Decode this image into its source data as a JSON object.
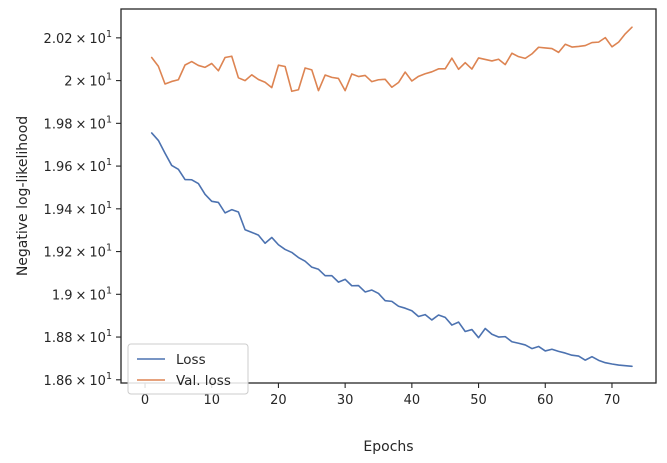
{
  "chart_data": {
    "type": "line",
    "title": "",
    "xlabel": "Epochs",
    "ylabel": "Negative log-likelihood",
    "x_ticks": [
      0,
      10,
      20,
      30,
      40,
      50,
      60,
      70
    ],
    "y_ticks": [
      {
        "value": 18.6,
        "mantissa": "1.86",
        "exp": "1"
      },
      {
        "value": 18.8,
        "mantissa": "1.88",
        "exp": "1"
      },
      {
        "value": 19.0,
        "mantissa": "1.9",
        "exp": "1"
      },
      {
        "value": 19.2,
        "mantissa": "1.92",
        "exp": "1"
      },
      {
        "value": 19.4,
        "mantissa": "1.94",
        "exp": "1"
      },
      {
        "value": 19.6,
        "mantissa": "1.96",
        "exp": "1"
      },
      {
        "value": 19.8,
        "mantissa": "1.98",
        "exp": "1"
      },
      {
        "value": 20.0,
        "mantissa": "2",
        "exp": "1"
      },
      {
        "value": 20.2,
        "mantissa": "2.02",
        "exp": "1"
      }
    ],
    "times_symbol": "×",
    "base": "10",
    "xlim": [
      -3.6,
      76.6
    ],
    "ylim": [
      18.585,
      20.335
    ],
    "grid": false,
    "legend_position": "lower-left",
    "series": [
      {
        "name": "Loss",
        "color": "#4c72b0",
        "x": [
          1,
          2,
          3,
          4,
          5,
          6,
          7,
          8,
          9,
          10,
          11,
          12,
          13,
          14,
          15,
          16,
          17,
          18,
          19,
          20,
          21,
          22,
          23,
          24,
          25,
          26,
          27,
          28,
          29,
          30,
          31,
          32,
          33,
          34,
          35,
          36,
          37,
          38,
          39,
          40,
          41,
          42,
          43,
          44,
          45,
          46,
          47,
          48,
          49,
          50,
          51,
          52,
          53,
          54,
          55,
          56,
          57,
          58,
          59,
          60,
          61,
          62,
          63,
          64,
          65,
          66,
          67,
          68,
          69,
          70,
          71,
          72,
          73
        ],
        "values": [
          19.755,
          19.72,
          19.66,
          19.603,
          19.585,
          19.537,
          19.536,
          19.518,
          19.468,
          19.435,
          19.43,
          19.381,
          19.396,
          19.385,
          19.302,
          19.29,
          19.277,
          19.239,
          19.266,
          19.232,
          19.21,
          19.196,
          19.172,
          19.155,
          19.127,
          19.117,
          19.087,
          19.087,
          19.057,
          19.07,
          19.04,
          19.041,
          19.011,
          19.02,
          19.004,
          18.97,
          18.967,
          18.944,
          18.935,
          18.923,
          18.896,
          18.905,
          18.88,
          18.903,
          18.892,
          18.856,
          18.87,
          18.826,
          18.835,
          18.797,
          18.84,
          18.813,
          18.8,
          18.802,
          18.778,
          18.771,
          18.763,
          18.746,
          18.756,
          18.735,
          18.743,
          18.733,
          18.725,
          18.715,
          18.711,
          18.692,
          18.708,
          18.691,
          18.68,
          18.674,
          18.669,
          18.666,
          18.663
        ]
      },
      {
        "name": "Val. loss",
        "color": "#dd8452",
        "x": [
          1,
          2,
          3,
          4,
          5,
          6,
          7,
          8,
          9,
          10,
          11,
          12,
          13,
          14,
          15,
          16,
          17,
          18,
          19,
          20,
          21,
          22,
          23,
          24,
          25,
          26,
          27,
          28,
          29,
          30,
          31,
          32,
          33,
          34,
          35,
          36,
          37,
          38,
          39,
          40,
          41,
          42,
          43,
          44,
          45,
          46,
          47,
          48,
          49,
          50,
          51,
          52,
          53,
          54,
          55,
          56,
          57,
          58,
          59,
          60,
          61,
          62,
          63,
          64,
          65,
          66,
          67,
          68,
          69,
          70,
          71,
          72,
          73
        ],
        "values": [
          20.108,
          20.067,
          19.984,
          19.996,
          20.004,
          20.073,
          20.089,
          20.071,
          20.062,
          20.08,
          20.046,
          20.108,
          20.114,
          20.013,
          20.0,
          20.027,
          20.005,
          19.992,
          19.967,
          20.072,
          20.066,
          19.95,
          19.957,
          20.059,
          20.05,
          19.953,
          20.026,
          20.015,
          20.01,
          19.953,
          20.031,
          20.019,
          20.024,
          19.995,
          20.004,
          20.006,
          19.969,
          19.991,
          20.04,
          19.998,
          20.02,
          20.032,
          20.041,
          20.055,
          20.055,
          20.105,
          20.053,
          20.084,
          20.054,
          20.106,
          20.099,
          20.092,
          20.1,
          20.075,
          20.128,
          20.112,
          20.104,
          20.125,
          20.156,
          20.153,
          20.15,
          20.132,
          20.17,
          20.157,
          20.16,
          20.164,
          20.178,
          20.18,
          20.201,
          20.158,
          20.18,
          20.219,
          20.25
        ]
      }
    ]
  }
}
